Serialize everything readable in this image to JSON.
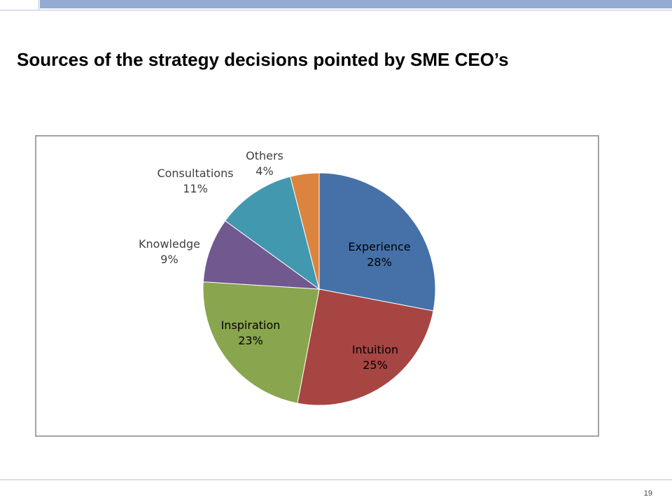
{
  "slide": {
    "title": "Sources of the strategy decisions pointed by SME CEO’s",
    "page_number": "19"
  },
  "chart_data": {
    "type": "pie",
    "title": "",
    "slices": [
      {
        "label": "Experience",
        "value": 28,
        "value_label": "28%",
        "color": "#4571a8"
      },
      {
        "label": "Intuition",
        "value": 25,
        "value_label": "25%",
        "color": "#a74543"
      },
      {
        "label": "Inspiration",
        "value": 23,
        "value_label": "23%",
        "color": "#89a54e"
      },
      {
        "label": "Knowledge",
        "value": 9,
        "value_label": "9%",
        "color": "#71588f"
      },
      {
        "label": "Consultations",
        "value": 11,
        "value_label": "11%",
        "color": "#4298af"
      },
      {
        "label": "Others",
        "value": 4,
        "value_label": "4%",
        "color": "#db843d"
      }
    ],
    "start_angle": "12 o'clock",
    "direction": "clockwise",
    "legend": "none",
    "label_positions": [
      "inside",
      "inside",
      "inside",
      "outside",
      "outside",
      "outside"
    ]
  }
}
